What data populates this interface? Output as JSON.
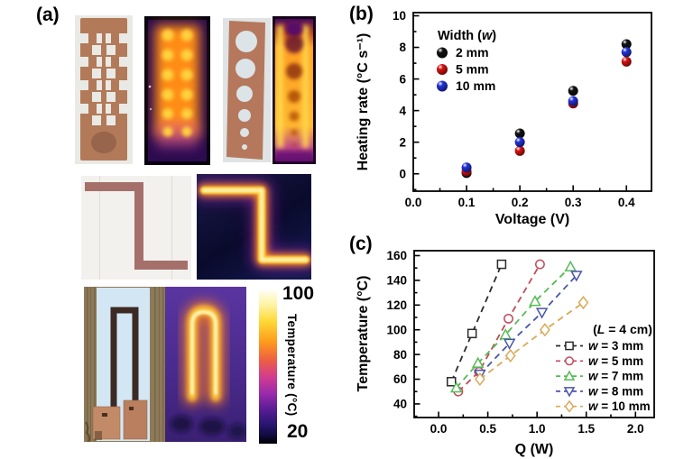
{
  "figure": {
    "panel_a_label": "(a)",
    "panel_b_label": "(b)",
    "panel_c_label": "(c)"
  },
  "colorbar": {
    "title": "Temperature (°C)",
    "max_label": "100",
    "min_label": "20"
  },
  "chart_data": [
    {
      "id": "chart-b",
      "type": "scatter",
      "title": "",
      "xlabel": "Voltage (V)",
      "ylabel": "Heating rate (°C s⁻¹)",
      "xlim": [
        0.0,
        0.447
      ],
      "ylim": [
        -1.1,
        10.2
      ],
      "xticks": [
        0.0,
        0.1,
        0.2,
        0.3,
        0.4
      ],
      "xtick_labels": [
        "0.0",
        "0.1",
        "0.2",
        "0.3",
        "0.4"
      ],
      "yticks": [
        0,
        2,
        4,
        6,
        8,
        10
      ],
      "ytick_labels": [
        "0",
        "2",
        "4",
        "6",
        "8",
        "10"
      ],
      "grid": false,
      "legend_title": "Width (w)",
      "legend_position": "top-left",
      "series": [
        {
          "name": "2 mm",
          "color": "#111111",
          "marker": "sphere",
          "line": "none",
          "x": [
            0.1,
            0.2,
            0.3,
            0.4
          ],
          "y": [
            0.05,
            2.55,
            5.25,
            8.2
          ]
        },
        {
          "name": "5 mm",
          "color": "#dd1111",
          "marker": "sphere",
          "line": "none",
          "x": [
            0.1,
            0.2,
            0.3,
            0.4
          ],
          "y": [
            0.15,
            1.45,
            4.45,
            7.1
          ]
        },
        {
          "name": "10 mm",
          "color": "#2233dd",
          "marker": "sphere",
          "line": "none",
          "x": [
            0.1,
            0.2,
            0.3,
            0.4
          ],
          "y": [
            0.4,
            2.0,
            4.6,
            7.7
          ]
        }
      ]
    },
    {
      "id": "chart-c",
      "type": "scatter",
      "title": "",
      "xlabel": "Q (W)",
      "ylabel": "Temperature (°C)",
      "xlim": [
        -0.248,
        2.19
      ],
      "ylim": [
        29,
        164
      ],
      "xticks": [
        0.0,
        0.5,
        1.0,
        1.5,
        2.0
      ],
      "xtick_labels": [
        "0.0",
        "0.5",
        "1.0",
        "1.5",
        "2.0"
      ],
      "yticks": [
        40,
        60,
        80,
        100,
        120,
        140,
        160
      ],
      "ytick_labels": [
        "40",
        "60",
        "80",
        "100",
        "120",
        "140",
        "160"
      ],
      "grid": false,
      "legend_title": "(L = 4 cm)",
      "legend_position": "right",
      "series": [
        {
          "name": "w = 3 mm",
          "color": "#2b2b2b",
          "marker": "square",
          "line": "dashed",
          "x": [
            0.13,
            0.34,
            0.64
          ],
          "y": [
            58,
            97,
            153
          ]
        },
        {
          "name": "w = 5 mm",
          "color": "#c24a5a",
          "marker": "circle",
          "line": "dashed",
          "x": [
            0.2,
            0.41,
            0.71,
            1.03
          ],
          "y": [
            50,
            66,
            109,
            153
          ]
        },
        {
          "name": "w = 7 mm",
          "color": "#55bb55",
          "marker": "triangle-up",
          "line": "dashed",
          "x": [
            0.18,
            0.4,
            0.68,
            0.98,
            1.34
          ],
          "y": [
            53,
            73,
            96,
            123,
            151
          ]
        },
        {
          "name": "w = 8 mm",
          "color": "#4a55aa",
          "marker": "triangle-down",
          "line": "dashed",
          "x": [
            0.42,
            0.72,
            1.05,
            1.4
          ],
          "y": [
            64,
            89,
            114,
            144
          ]
        },
        {
          "name": "w = 10 mm",
          "color": "#d9a957",
          "marker": "diamond",
          "line": "dashed",
          "x": [
            0.42,
            0.73,
            1.08,
            1.47
          ],
          "y": [
            60,
            79,
            100,
            122
          ]
        }
      ]
    }
  ]
}
